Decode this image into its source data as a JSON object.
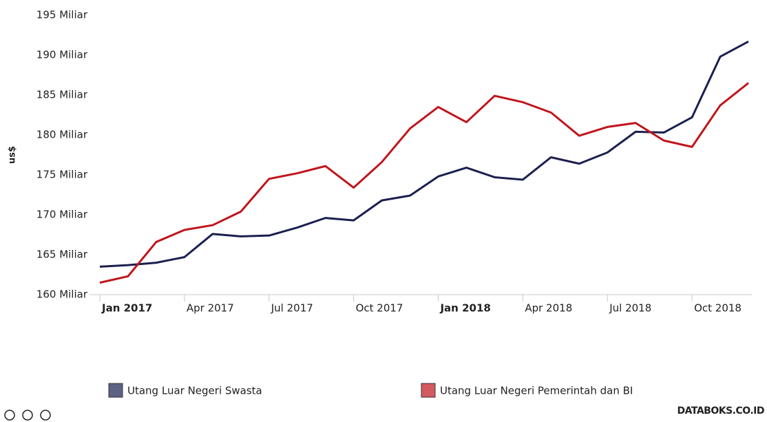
{
  "chart_data": {
    "type": "line",
    "y_label": "us$",
    "categories": [
      "Jan 2017",
      null,
      null,
      "Apr 2017",
      null,
      null,
      "Jul 2017",
      null,
      null,
      "Oct 2017",
      null,
      null,
      "Jan 2018",
      null,
      null,
      "Apr 2018",
      null,
      null,
      "Jul 2018",
      null,
      null,
      "Oct 2018",
      null,
      null
    ],
    "series": [
      {
        "name": "Utang Luar Negeri Swasta",
        "color": "#1a1f4e",
        "values": [
          163.5,
          163.7,
          164.0,
          164.7,
          167.6,
          167.3,
          167.4,
          168.4,
          169.6,
          169.3,
          171.8,
          172.4,
          174.8,
          175.9,
          174.7,
          174.4,
          177.2,
          176.4,
          177.8,
          180.4,
          180.3,
          182.2,
          189.8,
          191.7
        ]
      },
      {
        "name": "Utang Luar Negeri Pemerintah dan BI",
        "color": "#c0141c",
        "values": [
          161.5,
          162.3,
          166.6,
          168.1,
          168.7,
          170.4,
          174.5,
          175.2,
          176.1,
          173.4,
          176.6,
          180.8,
          183.5,
          181.6,
          184.9,
          184.1,
          182.8,
          179.9,
          181.0,
          181.5,
          179.3,
          178.5,
          183.7,
          186.5
        ]
      }
    ],
    "ylim": [
      160,
      195
    ],
    "yticks": [
      {
        "value": 160,
        "label": "160 Miliar"
      },
      {
        "value": 165,
        "label": "165 Miliar"
      },
      {
        "value": 170,
        "label": "170 Miliar"
      },
      {
        "value": 175,
        "label": "175 Miliar"
      },
      {
        "value": 180,
        "label": "180 Miliar"
      },
      {
        "value": 185,
        "label": "185 Miliar"
      },
      {
        "value": 190,
        "label": "190 Miliar"
      },
      {
        "value": 195,
        "label": "195 Miliar"
      }
    ],
    "grid": false,
    "legend": "bottom",
    "source": "DATABOKS.CO.ID"
  }
}
